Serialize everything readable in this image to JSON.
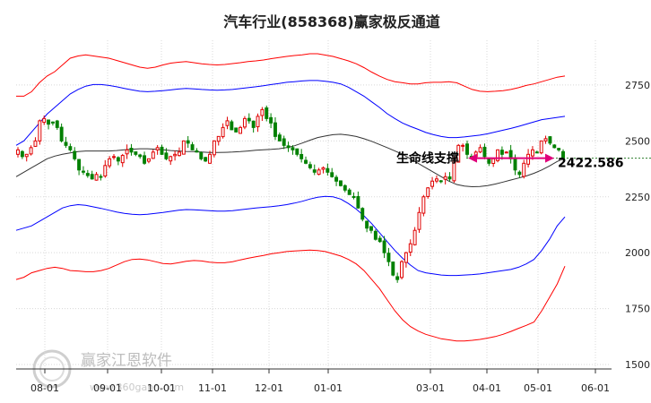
{
  "chart_data": {
    "type": "candlestick",
    "title": "汽车行业(858368)赢家极反通道",
    "x_ticks": [
      "08-01",
      "09-01",
      "10-01",
      "11-01",
      "12-01",
      "01-01",
      "03-01",
      "04-01",
      "05-01",
      "06-01"
    ],
    "y_ticks": [
      1500,
      1750,
      2000,
      2250,
      2500,
      2750
    ],
    "ylim": [
      1480,
      2950
    ],
    "grid": true,
    "support": {
      "label": "生命线支撑",
      "value": "2422.586",
      "level": 2422.586
    },
    "watermark": {
      "text": "赢家江恩软件",
      "sub": "www.360gann.com"
    },
    "colors": {
      "up": "#e00000",
      "down": "#008000",
      "outer_band": "#ff0000",
      "inner_band": "#0000ff",
      "middle_line": "#333333",
      "support_arrow": "#e0007a"
    },
    "close": [
      2460,
      2430,
      2440,
      2470,
      2500,
      2590,
      2600,
      2575,
      2580,
      2560,
      2500,
      2480,
      2460,
      2420,
      2370,
      2360,
      2345,
      2330,
      2350,
      2340,
      2390,
      2420,
      2430,
      2410,
      2435,
      2460,
      2450,
      2440,
      2430,
      2400,
      2420,
      2450,
      2470,
      2440,
      2420,
      2430,
      2440,
      2450,
      2500,
      2490,
      2460,
      2450,
      2420,
      2410,
      2440,
      2500,
      2520,
      2560,
      2590,
      2550,
      2540,
      2560,
      2600,
      2590,
      2560,
      2610,
      2640,
      2600,
      2580,
      2520,
      2500,
      2480,
      2470,
      2460,
      2440,
      2420,
      2400,
      2380,
      2360,
      2370,
      2380,
      2360,
      2340,
      2320,
      2300,
      2280,
      2260,
      2250,
      2200,
      2150,
      2110,
      2100,
      2060,
      2050,
      2000,
      1960,
      1900,
      1880,
      1960,
      2000,
      2040,
      2100,
      2180,
      2250,
      2290,
      2320,
      2330,
      2320,
      2340,
      2330,
      2410,
      2480,
      2480,
      2440,
      2430,
      2450,
      2470,
      2430,
      2400,
      2420,
      2460,
      2440,
      2450,
      2420,
      2370,
      2350,
      2400,
      2440,
      2460,
      2450,
      2500,
      2510,
      2490,
      2470,
      2460,
      2422
    ],
    "middle": [
      2340,
      2360,
      2380,
      2400,
      2420,
      2432,
      2440,
      2446,
      2452,
      2455,
      2455,
      2455,
      2455,
      2457,
      2460,
      2463,
      2465,
      2465,
      2463,
      2460,
      2457,
      2455,
      2453,
      2452,
      2450,
      2448,
      2448,
      2449,
      2450,
      2452,
      2455,
      2458,
      2460,
      2462,
      2465,
      2470,
      2478,
      2490,
      2503,
      2515,
      2522,
      2528,
      2530,
      2526,
      2520,
      2510,
      2498,
      2484,
      2470,
      2455,
      2440,
      2420,
      2400,
      2380,
      2360,
      2340,
      2320,
      2305,
      2298,
      2295,
      2296,
      2300,
      2307,
      2316,
      2325,
      2334,
      2343,
      2355,
      2370,
      2388,
      2408,
      2422
    ],
    "upper_outer": [
      2700,
      2700,
      2720,
      2760,
      2790,
      2810,
      2840,
      2870,
      2880,
      2885,
      2880,
      2875,
      2870,
      2860,
      2850,
      2840,
      2830,
      2825,
      2830,
      2840,
      2848,
      2852,
      2855,
      2850,
      2845,
      2842,
      2840,
      2842,
      2846,
      2850,
      2855,
      2858,
      2862,
      2868,
      2873,
      2878,
      2882,
      2885,
      2890,
      2890,
      2884,
      2878,
      2868,
      2858,
      2845,
      2828,
      2808,
      2790,
      2775,
      2765,
      2760,
      2755,
      2755,
      2760,
      2762,
      2762,
      2765,
      2760,
      2745,
      2730,
      2722,
      2720,
      2722,
      2725,
      2730,
      2738,
      2748,
      2755,
      2765,
      2775,
      2785,
      2790
    ],
    "upper_inner": [
      2480,
      2500,
      2540,
      2580,
      2620,
      2650,
      2680,
      2710,
      2730,
      2745,
      2752,
      2752,
      2748,
      2742,
      2735,
      2728,
      2722,
      2720,
      2722,
      2725,
      2728,
      2732,
      2735,
      2733,
      2730,
      2728,
      2727,
      2728,
      2730,
      2734,
      2738,
      2742,
      2747,
      2752,
      2757,
      2762,
      2765,
      2768,
      2770,
      2770,
      2767,
      2762,
      2755,
      2740,
      2720,
      2700,
      2675,
      2650,
      2622,
      2600,
      2580,
      2565,
      2552,
      2538,
      2528,
      2520,
      2515,
      2515,
      2518,
      2522,
      2526,
      2532,
      2540,
      2548,
      2556,
      2565,
      2575,
      2585,
      2595,
      2600,
      2605,
      2610
    ],
    "lower_inner": [
      2100,
      2110,
      2120,
      2140,
      2160,
      2180,
      2200,
      2210,
      2215,
      2212,
      2205,
      2198,
      2190,
      2182,
      2176,
      2172,
      2170,
      2172,
      2176,
      2180,
      2185,
      2190,
      2193,
      2192,
      2190,
      2188,
      2186,
      2186,
      2188,
      2192,
      2196,
      2200,
      2203,
      2206,
      2210,
      2215,
      2222,
      2230,
      2240,
      2248,
      2252,
      2250,
      2240,
      2220,
      2195,
      2165,
      2130,
      2090,
      2050,
      2010,
      1975,
      1945,
      1920,
      1910,
      1905,
      1900,
      1898,
      1898,
      1900,
      1902,
      1905,
      1910,
      1915,
      1920,
      1925,
      1935,
      1950,
      1970,
      2010,
      2060,
      2120,
      2160
    ],
    "lower_outer": [
      1880,
      1890,
      1910,
      1920,
      1930,
      1935,
      1930,
      1920,
      1918,
      1915,
      1915,
      1920,
      1930,
      1945,
      1960,
      1970,
      1972,
      1968,
      1960,
      1952,
      1950,
      1955,
      1962,
      1965,
      1963,
      1958,
      1955,
      1955,
      1960,
      1968,
      1975,
      1982,
      1988,
      1995,
      2000,
      2005,
      2008,
      2010,
      2012,
      2010,
      2005,
      1995,
      1985,
      1970,
      1950,
      1920,
      1880,
      1840,
      1790,
      1740,
      1700,
      1670,
      1650,
      1635,
      1625,
      1615,
      1610,
      1605,
      1605,
      1608,
      1612,
      1618,
      1625,
      1635,
      1648,
      1662,
      1675,
      1690,
      1740,
      1800,
      1860,
      1940
    ]
  }
}
